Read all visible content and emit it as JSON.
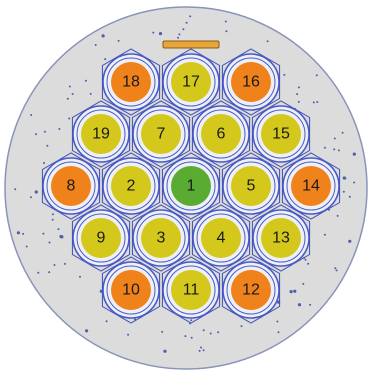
{
  "colors": {
    "plate_fill": "#dcdcdc",
    "plate_stroke": "#8a93b8",
    "hex_stroke": "#3f4fb0",
    "ring_stroke": "#4a5ac8",
    "inner_fill": "#eef0f7",
    "dot": "#4f5fa8",
    "slot_fill": "#e8a53a",
    "slot_stroke": "#8a5a10",
    "center": "#5aab32",
    "yellow": "#d4c81c",
    "orange": "#f0821c"
  },
  "cells": [
    {
      "label": "1",
      "color": "center",
      "q": 0,
      "r": 0
    },
    {
      "label": "2",
      "color": "yellow",
      "q": -1,
      "r": 0
    },
    {
      "label": "3",
      "color": "yellow",
      "q": -1,
      "r": 1
    },
    {
      "label": "4",
      "color": "yellow",
      "q": 0,
      "r": 1
    },
    {
      "label": "5",
      "color": "yellow",
      "q": 1,
      "r": 0
    },
    {
      "label": "6",
      "color": "yellow",
      "q": 1,
      "r": -1
    },
    {
      "label": "7",
      "color": "yellow",
      "q": 0,
      "r": -1
    },
    {
      "label": "8",
      "color": "orange",
      "q": -2,
      "r": 0
    },
    {
      "label": "9",
      "color": "yellow",
      "q": -2,
      "r": 1
    },
    {
      "label": "10",
      "color": "orange",
      "q": -2,
      "r": 2
    },
    {
      "label": "11",
      "color": "yellow",
      "q": -1,
      "r": 2
    },
    {
      "label": "12",
      "color": "orange",
      "q": 0,
      "r": 2
    },
    {
      "label": "13",
      "color": "yellow",
      "q": 1,
      "r": 1
    },
    {
      "label": "14",
      "color": "orange",
      "q": 2,
      "r": 0
    },
    {
      "label": "15",
      "color": "yellow",
      "q": 2,
      "r": -1
    },
    {
      "label": "16",
      "color": "orange",
      "q": 2,
      "r": -2
    },
    {
      "label": "17",
      "color": "yellow",
      "q": 1,
      "r": -2
    },
    {
      "label": "18",
      "color": "orange",
      "q": 0,
      "r": -2
    },
    {
      "label": "19",
      "color": "yellow",
      "q": -1,
      "r": -1
    }
  ]
}
